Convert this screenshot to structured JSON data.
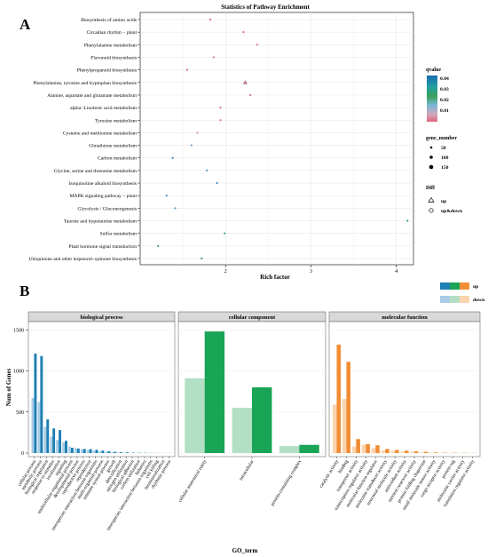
{
  "figure": {
    "panel_a_letter": "A",
    "panel_b_letter": "B"
  },
  "chart_data": [
    {
      "type": "scatter",
      "title": "Statistics of Pathway Enrichment",
      "xlabel": "Rich factor",
      "ylabel": "",
      "xlim": [
        1.0,
        4.2
      ],
      "xticks": [
        "2",
        "3",
        "4"
      ],
      "grid": true,
      "categories": [
        "Biosynthesis of amino acids",
        "Circadian rhythm − plant",
        "Phenylalanine metabolism",
        "Flavonoid biosynthesis",
        "Phenylpropanoid biosynthesis",
        "Phenylalanine, tyrosine and tryptophan biosynthesis",
        "Alanine, aspartate and glutamate metabolism",
        "alpha−Linolenic acid metabolism",
        "Tyrosine metabolism",
        "Cysteine and methionine metabolism",
        "Glutathione metabolism",
        "Carbon metabolism",
        "Glycine, serine and threonine metabolism",
        "Isoquinoline alkaloid biosynthesis",
        "MAPK signaling pathway − plant",
        "Glycolysis / Gluconeogenesis",
        "Taurine and hypotaurine metabolism",
        "Sulfur metabolism",
        "Plant hormone signal transduction",
        "Ubiquinone and other terpenoid−quinone biosynthesis"
      ],
      "points": [
        {
          "term": "Biosynthesis of amino acids",
          "x": 1.82,
          "qvalue": 0.002,
          "gene_number": 30,
          "diff": "up&down"
        },
        {
          "term": "Circadian rhythm − plant",
          "x": 2.21,
          "qvalue": 0.003,
          "gene_number": 30,
          "diff": "up&down"
        },
        {
          "term": "Phenylalanine metabolism",
          "x": 2.37,
          "qvalue": 0.003,
          "gene_number": 30,
          "diff": "up&down"
        },
        {
          "term": "Flavonoid biosynthesis",
          "x": 1.86,
          "qvalue": 0.004,
          "gene_number": 30,
          "diff": "up&down"
        },
        {
          "term": "Phenylpropanoid biosynthesis",
          "x": 1.55,
          "qvalue": 0.003,
          "gene_number": 30,
          "diff": "up&down"
        },
        {
          "term": "Phenylalanine, tyrosine and tryptophan biosynthesis",
          "x": 2.23,
          "qvalue": 0.004,
          "gene_number": 50,
          "diff": "up"
        },
        {
          "term": "Alanine, aspartate and glutamate metabolism",
          "x": 2.29,
          "qvalue": 0.004,
          "gene_number": 30,
          "diff": "up&down"
        },
        {
          "term": "alpha−Linolenic acid metabolism",
          "x": 1.94,
          "qvalue": 0.004,
          "gene_number": 30,
          "diff": "up&down"
        },
        {
          "term": "Tyrosine metabolism",
          "x": 1.94,
          "qvalue": 0.005,
          "gene_number": 30,
          "diff": "up&down"
        },
        {
          "term": "Cysteine and methionine metabolism",
          "x": 1.67,
          "qvalue": 0.006,
          "gene_number": 30,
          "diff": "up&down"
        },
        {
          "term": "Glutathione metabolism",
          "x": 1.6,
          "qvalue": 0.016,
          "gene_number": 30,
          "diff": "up&down"
        },
        {
          "term": "Carbon metabolism",
          "x": 1.38,
          "qvalue": 0.022,
          "gene_number": 30,
          "diff": "up&down"
        },
        {
          "term": "Glycine, serine and threonine metabolism",
          "x": 1.78,
          "qvalue": 0.018,
          "gene_number": 30,
          "diff": "up&down"
        },
        {
          "term": "Isoquinoline alkaloid biosynthesis",
          "x": 1.9,
          "qvalue": 0.022,
          "gene_number": 30,
          "diff": "up&down"
        },
        {
          "term": "MAPK signaling pathway − plant",
          "x": 1.31,
          "qvalue": 0.02,
          "gene_number": 30,
          "diff": "up&down"
        },
        {
          "term": "Glycolysis / Gluconeogenesis",
          "x": 1.41,
          "qvalue": 0.018,
          "gene_number": 30,
          "diff": "up&down"
        },
        {
          "term": "Taurine and hypotaurine metabolism",
          "x": 4.13,
          "qvalue": 0.036,
          "gene_number": 30,
          "diff": "up&down"
        },
        {
          "term": "Sulfur metabolism",
          "x": 1.99,
          "qvalue": 0.037,
          "gene_number": 30,
          "diff": "up&down"
        },
        {
          "term": "Plant hormone signal transduction",
          "x": 1.21,
          "qvalue": 0.038,
          "gene_number": 30,
          "diff": "up&down"
        },
        {
          "term": "Ubiquinone and other terpenoid−quinone biosynthesis",
          "x": 1.72,
          "qvalue": 0.04,
          "gene_number": 30,
          "diff": "up&down"
        }
      ],
      "legend": {
        "placement": "right",
        "qvalue": {
          "title": "qvalue",
          "ticks": [
            "0.04",
            "0.03",
            "0.02",
            "0.01"
          ],
          "range": [
            0.002,
            0.042
          ],
          "colors": [
            "#e0647a",
            "#d4a6b8",
            "#5a9ec4",
            "#1a6faf",
            "#1fa39a",
            "#3ba05c"
          ]
        },
        "gene_number": {
          "title": "gene_number",
          "labels": [
            "50",
            "100",
            "150"
          ],
          "values": [
            50,
            100,
            150
          ]
        },
        "diff": {
          "title": "Diff",
          "labels": [
            "up",
            "up&down"
          ]
        }
      }
    },
    {
      "type": "bar",
      "xlabel": "GO_term",
      "ylabel": "Num of Genes",
      "ylim": [
        0,
        1600
      ],
      "yticks": [
        "0",
        "500",
        "1000",
        "1500"
      ],
      "yticks_values": [
        0,
        500,
        1000,
        1500
      ],
      "legend": {
        "placement": "top-right",
        "labels": [
          "up",
          "down"
        ]
      },
      "facets": [
        {
          "name": "biological process",
          "colors": {
            "up": "#1d7fb3",
            "down": "#a8cde5"
          },
          "categories": [
            "cellular process",
            "metabolic process",
            "biological regulation",
            "response to stimulus",
            "localization",
            "signaling",
            "multicellular organismal process",
            "developmental process",
            "reproductive process",
            "reproduction",
            "interspecies interaction between organisms",
            "multi-organism process",
            "immune system process",
            "growth",
            "detoxification",
            "nitrogen utilization",
            "biological adhesion",
            "carbon utilization",
            "behavior",
            "interspecies interaction between organisms",
            "cell killing",
            "biomineralization",
            "rhythmic process"
          ],
          "series": [
            {
              "name": "down",
              "values": [
                670,
                620,
                320,
                200,
                160,
                130,
                80,
                60,
                45,
                40,
                30,
                22,
                18,
                12,
                8,
                6,
                4,
                3,
                2,
                2,
                1,
                1,
                1
              ]
            },
            {
              "name": "up",
              "values": [
                1210,
                1180,
                410,
                300,
                280,
                150,
                65,
                55,
                50,
                48,
                40,
                30,
                22,
                15,
                10,
                8,
                5,
                4,
                3,
                2,
                2,
                1,
                1
              ]
            }
          ]
        },
        {
          "name": "cellular component",
          "colors": {
            "up": "#1aa455",
            "down": "#b3dfc4"
          },
          "categories": [
            "cellular anatomical entity",
            "intracellular",
            "protein-containing complex"
          ],
          "series": [
            {
              "name": "down",
              "values": [
                910,
                550,
                85
              ]
            },
            {
              "name": "up",
              "values": [
                1480,
                800,
                100
              ]
            }
          ]
        },
        {
          "name": "molecular function",
          "colors": {
            "up": "#f28d35",
            "down": "#fbd4ae"
          },
          "categories": [
            "catalytic activity",
            "binding",
            "transporter activity",
            "transcription regulator activity",
            "molecular function regulator",
            "molecular transducer activity",
            "structural molecule activity",
            "antioxidant activity",
            "nutrient reservoir activity",
            "protein folding chaperone",
            "small molecule sensor activity",
            "cargo receptor activity",
            "protein tag",
            "molecular carrier activity",
            "translation regulator activity"
          ],
          "series": [
            {
              "name": "down",
              "values": [
                590,
                660,
                80,
                100,
                60,
                30,
                28,
                18,
                15,
                10,
                6,
                4,
                3,
                2,
                2
              ]
            },
            {
              "name": "up",
              "values": [
                1320,
                1110,
                170,
                110,
                95,
                50,
                38,
                30,
                20,
                15,
                8,
                5,
                4,
                3,
                2
              ]
            }
          ]
        }
      ]
    }
  ]
}
